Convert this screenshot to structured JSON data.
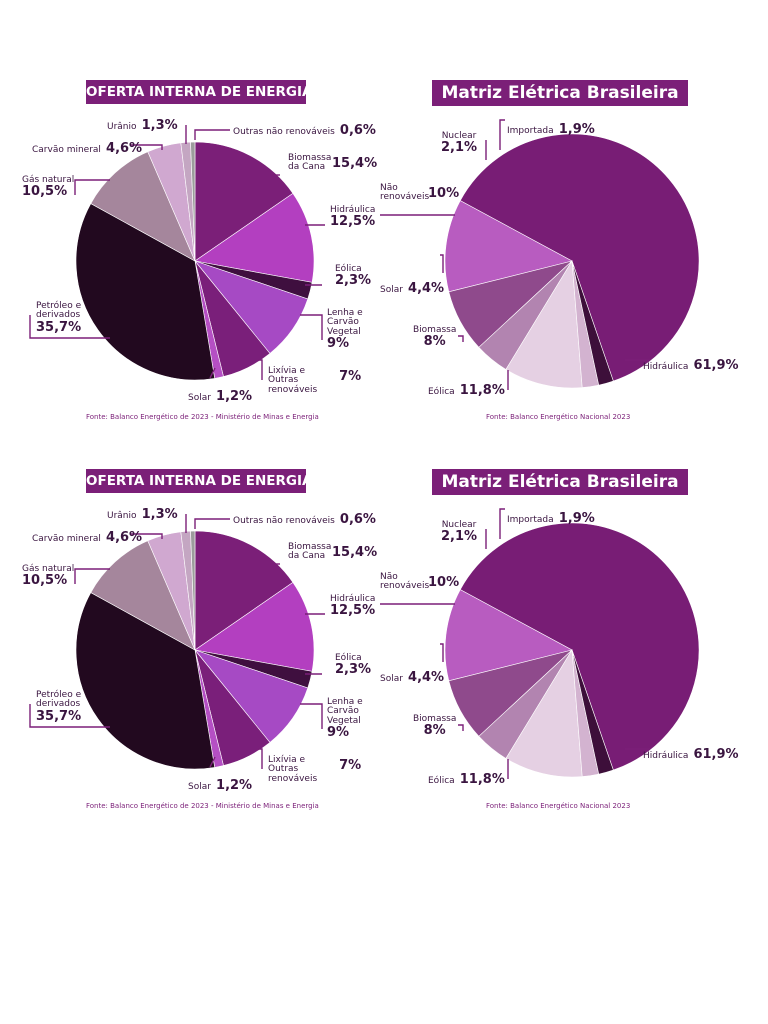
{
  "panels": [
    {
      "left": {
        "title": "OFERTA INTERNA DE ENERGIA",
        "source": "Fonte: Balanco Energético de 2023 - Ministério de Minas e Energia",
        "labels": {
          "biomassa_name": "Biomassa da Cana",
          "biomassa_val": "15,4%",
          "hidraulica_name": "Hidráulica",
          "hidraulica_val": "12,5%",
          "eolica_name": "Eólica",
          "eolica_val": "2,3%",
          "lenha_name": "Lenha e Carvão Vegetal",
          "lenha_val": "9%",
          "lixivia_name": "Lixívia e Outras renováveis",
          "lixivia_val": "7%",
          "solar_name": "Solar",
          "solar_val": "1,2%",
          "petroleo_name": "Petróleo e derivados",
          "petroleo_val": "35,7%",
          "gas_name": "Gás natural",
          "gas_val": "10,5%",
          "carvao_name": "Carvão mineral",
          "carvao_val": "4,6%",
          "uranio_name": "Urânio",
          "uranio_val": "1,3%",
          "outras_name": "Outras não renováveis",
          "outras_val": "0,6%"
        }
      },
      "right": {
        "title": "Matriz Elétrica Brasileira",
        "source": "Fonte: Balanco Energético Nacional 2023",
        "labels": {
          "importada_name": "Importada",
          "importada_val": "1,9%",
          "nuclear_name": "Nuclear",
          "nuclear_val": "2,1%",
          "naorenov_name": "Não renováveis",
          "naorenov_val": "10%",
          "solar_name": "Solar",
          "solar_val": "4,4%",
          "biomassa_name": "Biomassa",
          "biomassa_val": "8%",
          "eolica_name": "Eólica",
          "eolica_val": "11,8%",
          "hidraulica_name": "Hidráulica",
          "hidraulica_val": "61,9%"
        }
      }
    },
    {
      "left": {
        "title": "OFERTA INTERNA DE ENERGIA",
        "source": "Fonte: Balanco Energético de 2023 - Ministério de Minas e Energia",
        "labels": {
          "biomassa_name": "Biomassa da Cana",
          "biomassa_val": "15,4%",
          "hidraulica_name": "Hidráulica",
          "hidraulica_val": "12,5%",
          "eolica_name": "Eólica",
          "eolica_val": "2,3%",
          "lenha_name": "Lenha e Carvão Vegetal",
          "lenha_val": "9%",
          "lixivia_name": "Lixívia e Outras renováveis",
          "lixivia_val": "7%",
          "solar_name": "Solar",
          "solar_val": "1,2%",
          "petroleo_name": "Petróleo e derivados",
          "petroleo_val": "35,7%",
          "gas_name": "Gás natural",
          "gas_val": "10,5%",
          "carvao_name": "Carvão mineral",
          "carvao_val": "4,6%",
          "uranio_name": "Urânio",
          "uranio_val": "1,3%",
          "outras_name": "Outras não renováveis",
          "outras_val": "0,6%"
        }
      },
      "right": {
        "title": "Matriz Elétrica Brasileira",
        "source": "Fonte: Balanco Energético Nacional 2023",
        "labels": {
          "importada_name": "Importada",
          "importada_val": "1,9%",
          "nuclear_name": "Nuclear",
          "nuclear_val": "2,1%",
          "naorenov_name": "Não renováveis",
          "naorenov_val": "10%",
          "solar_name": "Solar",
          "solar_val": "4,4%",
          "biomassa_name": "Biomassa",
          "biomassa_val": "8%",
          "eolica_name": "Eólica",
          "eolica_val": "11,8%",
          "hidraulica_name": "Hidráulica",
          "hidraulica_val": "61,9%"
        }
      }
    }
  ],
  "chart_data": [
    {
      "type": "pie",
      "title": "OFERTA INTERNA DE ENERGIA",
      "categories": [
        "Biomassa da Cana",
        "Hidráulica",
        "Eólica",
        "Lenha e Carvão Vegetal",
        "Lixívia e Outras renováveis",
        "Solar",
        "Petróleo e derivados",
        "Gás natural",
        "Carvão mineral",
        "Urânio",
        "Outras não renováveis"
      ],
      "values": [
        15.4,
        12.5,
        2.3,
        9,
        7,
        1.2,
        35.7,
        10.5,
        4.6,
        1.3,
        0.6
      ],
      "colors": [
        "#7b1f78",
        "#b33fc0",
        "#3f0f3f",
        "#a64ac4",
        "#7a1f7a",
        "#b54fc4",
        "#22091f",
        "#a5869c",
        "#d0a8d0",
        "#c4a6c2",
        "#9c9c9c"
      ]
    },
    {
      "type": "pie",
      "title": "Matriz Elétrica Brasileira",
      "categories": [
        "Hidráulica",
        "Eólica",
        "Biomassa",
        "Solar",
        "Não renováveis",
        "Nuclear",
        "Importada"
      ],
      "values": [
        61.9,
        11.8,
        8,
        4.4,
        10,
        2.1,
        1.9
      ],
      "colors": [
        "#781d75",
        "#b85cc0",
        "#8f4a8c",
        "#b284b0",
        "#e5d0e3",
        "#d3b3d0",
        "#3d0f3a"
      ]
    }
  ]
}
